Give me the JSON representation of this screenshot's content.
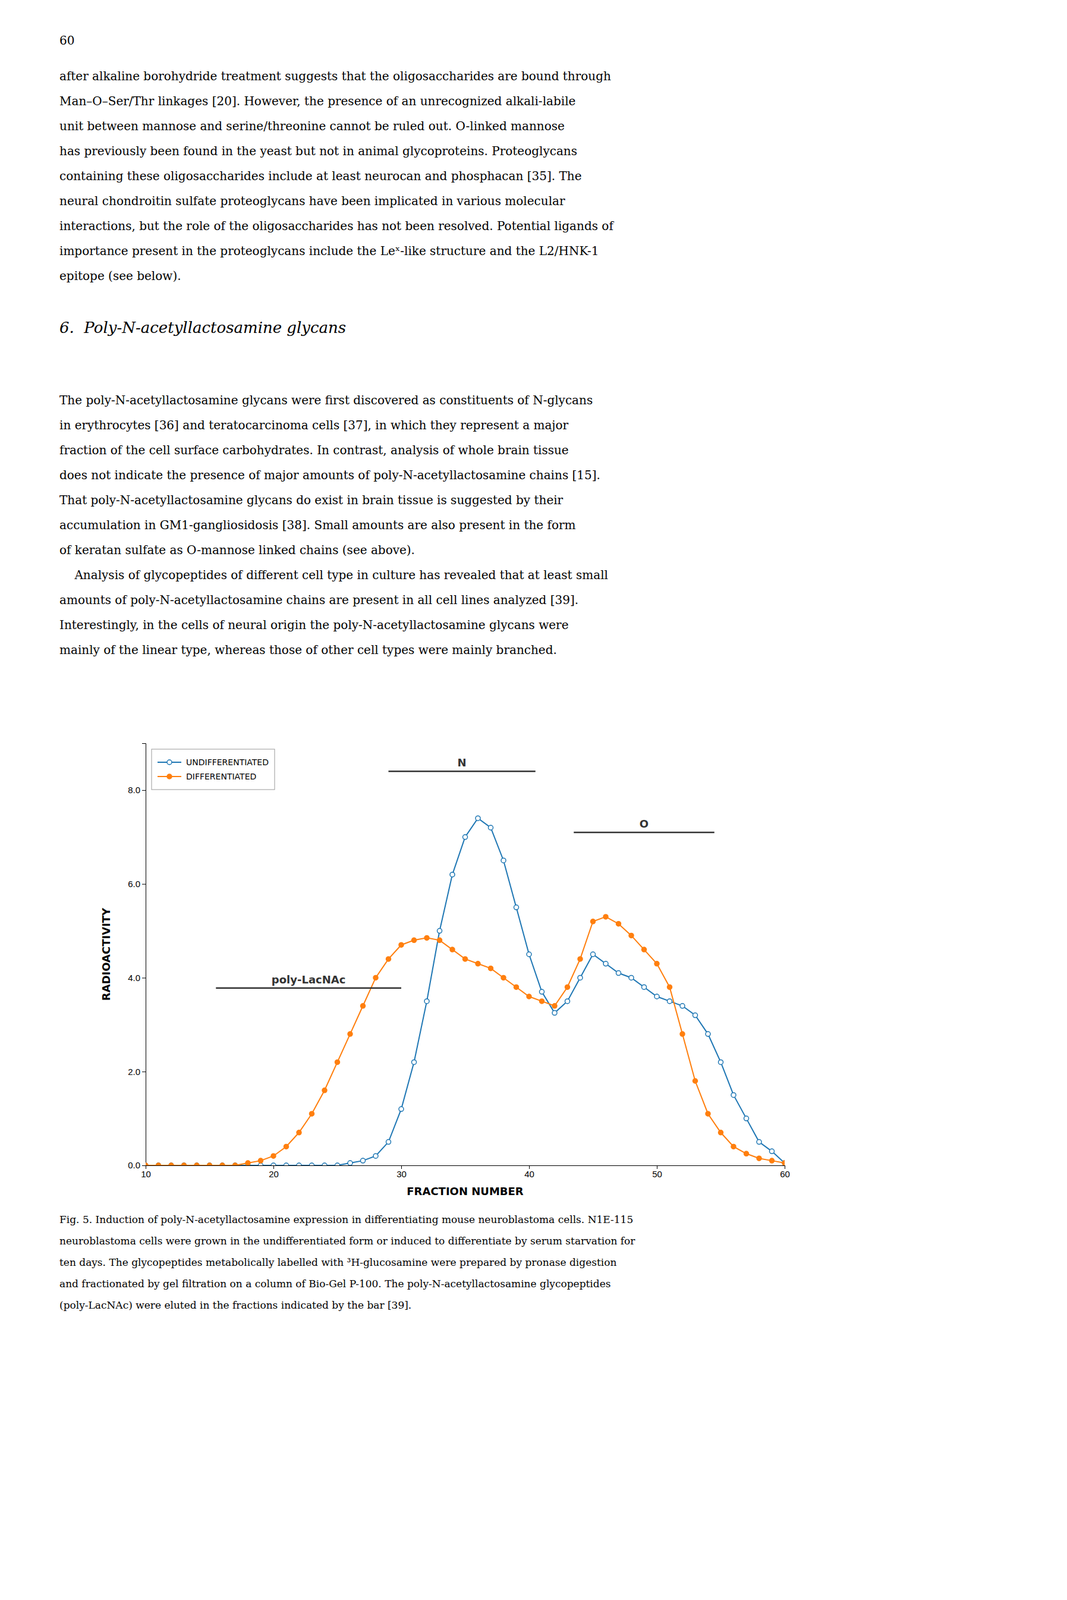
{
  "page_number": "60",
  "para1_lines": [
    "after alkaline borohydride treatment suggests that the oligosaccharides are bound through",
    "Man–O–Ser/Thr linkages [20]. However, the presence of an unrecognized alkali-labile",
    "unit between mannose and serine/threonine cannot be ruled out. O-linked mannose",
    "has previously been found in the yeast but not in animal glycoproteins. Proteoglycans",
    "containing these oligosaccharides include at least neurocan and phosphacan [35]. The",
    "neural chondroitin sulfate proteoglycans have been implicated in various molecular",
    "interactions, but the role of the oligosaccharides has not been resolved. Potential ligands of",
    "importance present in the proteoglycans include the Leˣ-like structure and the L2/HNK-1",
    "epitope (see below)."
  ],
  "section_title": "6.  Poly-N-acetyllactosamine glycans",
  "para2_lines": [
    "The poly-N-acetyllactosamine glycans were first discovered as constituents of N-glycans",
    "in erythrocytes [36] and teratocarcinoma cells [37], in which they represent a major",
    "fraction of the cell surface carbohydrates. In contrast, analysis of whole brain tissue",
    "does not indicate the presence of major amounts of poly-N-acetyllactosamine chains [15].",
    "That poly-N-acetyllactosamine glycans do exist in brain tissue is suggested by their",
    "accumulation in GM1-gangliosidosis [38]. Small amounts are also present in the form",
    "of keratan sulfate as O-mannose linked chains (see above).",
    "    Analysis of glycopeptides of different cell type in culture has revealed that at least small",
    "amounts of poly-N-acetyllactosamine chains are present in all cell lines analyzed [39].",
    "Interestingly, in the cells of neural origin the poly-N-acetyllactosamine glycans were",
    "mainly of the linear type, whereas those of other cell types were mainly branched."
  ],
  "caption_lines": [
    "Fig. 5. Induction of poly-N-acetyllactosamine expression in differentiating mouse neuroblastoma cells. N1E-115",
    "neuroblastoma cells were grown in the undifferentiated form or induced to differentiate by serum starvation for",
    "ten days. The glycopeptides metabolically labelled with ³H-glucosamine were prepared by pronase digestion",
    "and fractionated by gel filtration on a column of Bio-Gel P-100. The poly-N-acetyllactosamine glycopeptides",
    "(poly-LacNAc) were eluted in the fractions indicated by the bar [39]."
  ],
  "chart_data": {
    "type": "line",
    "x_label": "FRACTION NUMBER",
    "y_label": "RADIOACTIVITY",
    "x": [
      10,
      11,
      12,
      13,
      14,
      15,
      16,
      17,
      18,
      19,
      20,
      21,
      22,
      23,
      24,
      25,
      26,
      27,
      28,
      29,
      30,
      31,
      32,
      33,
      34,
      35,
      36,
      37,
      38,
      39,
      40,
      41,
      42,
      43,
      44,
      45,
      46,
      47,
      48,
      49,
      50,
      51,
      52,
      53,
      54,
      55,
      56,
      57,
      58,
      59,
      60
    ],
    "series": [
      {
        "name": "UNDIFFERENTIATED",
        "marker": "open-circle",
        "values": [
          0.0,
          0.0,
          0.0,
          0.0,
          0.0,
          0.0,
          0.0,
          0.0,
          0.0,
          0.0,
          0.0,
          0.0,
          0.0,
          0.0,
          0.0,
          0.0,
          0.05,
          0.1,
          0.2,
          0.5,
          1.2,
          2.2,
          3.5,
          5.0,
          6.2,
          7.0,
          7.4,
          7.2,
          6.5,
          5.5,
          4.5,
          3.7,
          3.25,
          3.5,
          4.0,
          4.5,
          4.3,
          4.1,
          4.0,
          3.8,
          3.6,
          3.5,
          3.4,
          3.2,
          2.8,
          2.2,
          1.5,
          1.0,
          0.5,
          0.3,
          0.05
        ]
      },
      {
        "name": "DIFFERENTIATED",
        "marker": "circle",
        "values": [
          0.0,
          0.0,
          0.0,
          0.0,
          0.0,
          0.0,
          0.0,
          0.0,
          0.05,
          0.1,
          0.2,
          0.4,
          0.7,
          1.1,
          1.6,
          2.2,
          2.8,
          3.4,
          4.0,
          4.4,
          4.7,
          4.8,
          4.85,
          4.8,
          4.6,
          4.4,
          4.3,
          4.2,
          4.0,
          3.8,
          3.6,
          3.5,
          3.4,
          3.8,
          4.4,
          5.2,
          5.3,
          5.15,
          4.9,
          4.6,
          4.3,
          3.8,
          2.8,
          1.8,
          1.1,
          0.7,
          0.4,
          0.25,
          0.15,
          0.1,
          0.05
        ]
      }
    ],
    "xlim": [
      10,
      60
    ],
    "ylim": [
      0.0,
      9.0
    ],
    "xticks": [
      10,
      20,
      30,
      40,
      50,
      60
    ],
    "yticks": [
      {
        "value": 0.0,
        "label": "0.0"
      },
      {
        "value": 2.0,
        "label": "2.0"
      },
      {
        "value": 4.0,
        "label": "4.0"
      },
      {
        "value": 6.0,
        "label": "6.0"
      },
      {
        "value": 8.0,
        "label": "8.0"
      }
    ],
    "annotations": [
      {
        "text": "poly-LacNAc",
        "x": [
          15.5,
          30.0
        ],
        "y": 3.78
      },
      {
        "text": "N",
        "x": [
          29.0,
          40.5
        ],
        "y": 8.4
      },
      {
        "text": "O",
        "x": [
          43.5,
          54.5
        ],
        "y": 7.1
      }
    ],
    "legend": "upper left",
    "grid": false
  }
}
